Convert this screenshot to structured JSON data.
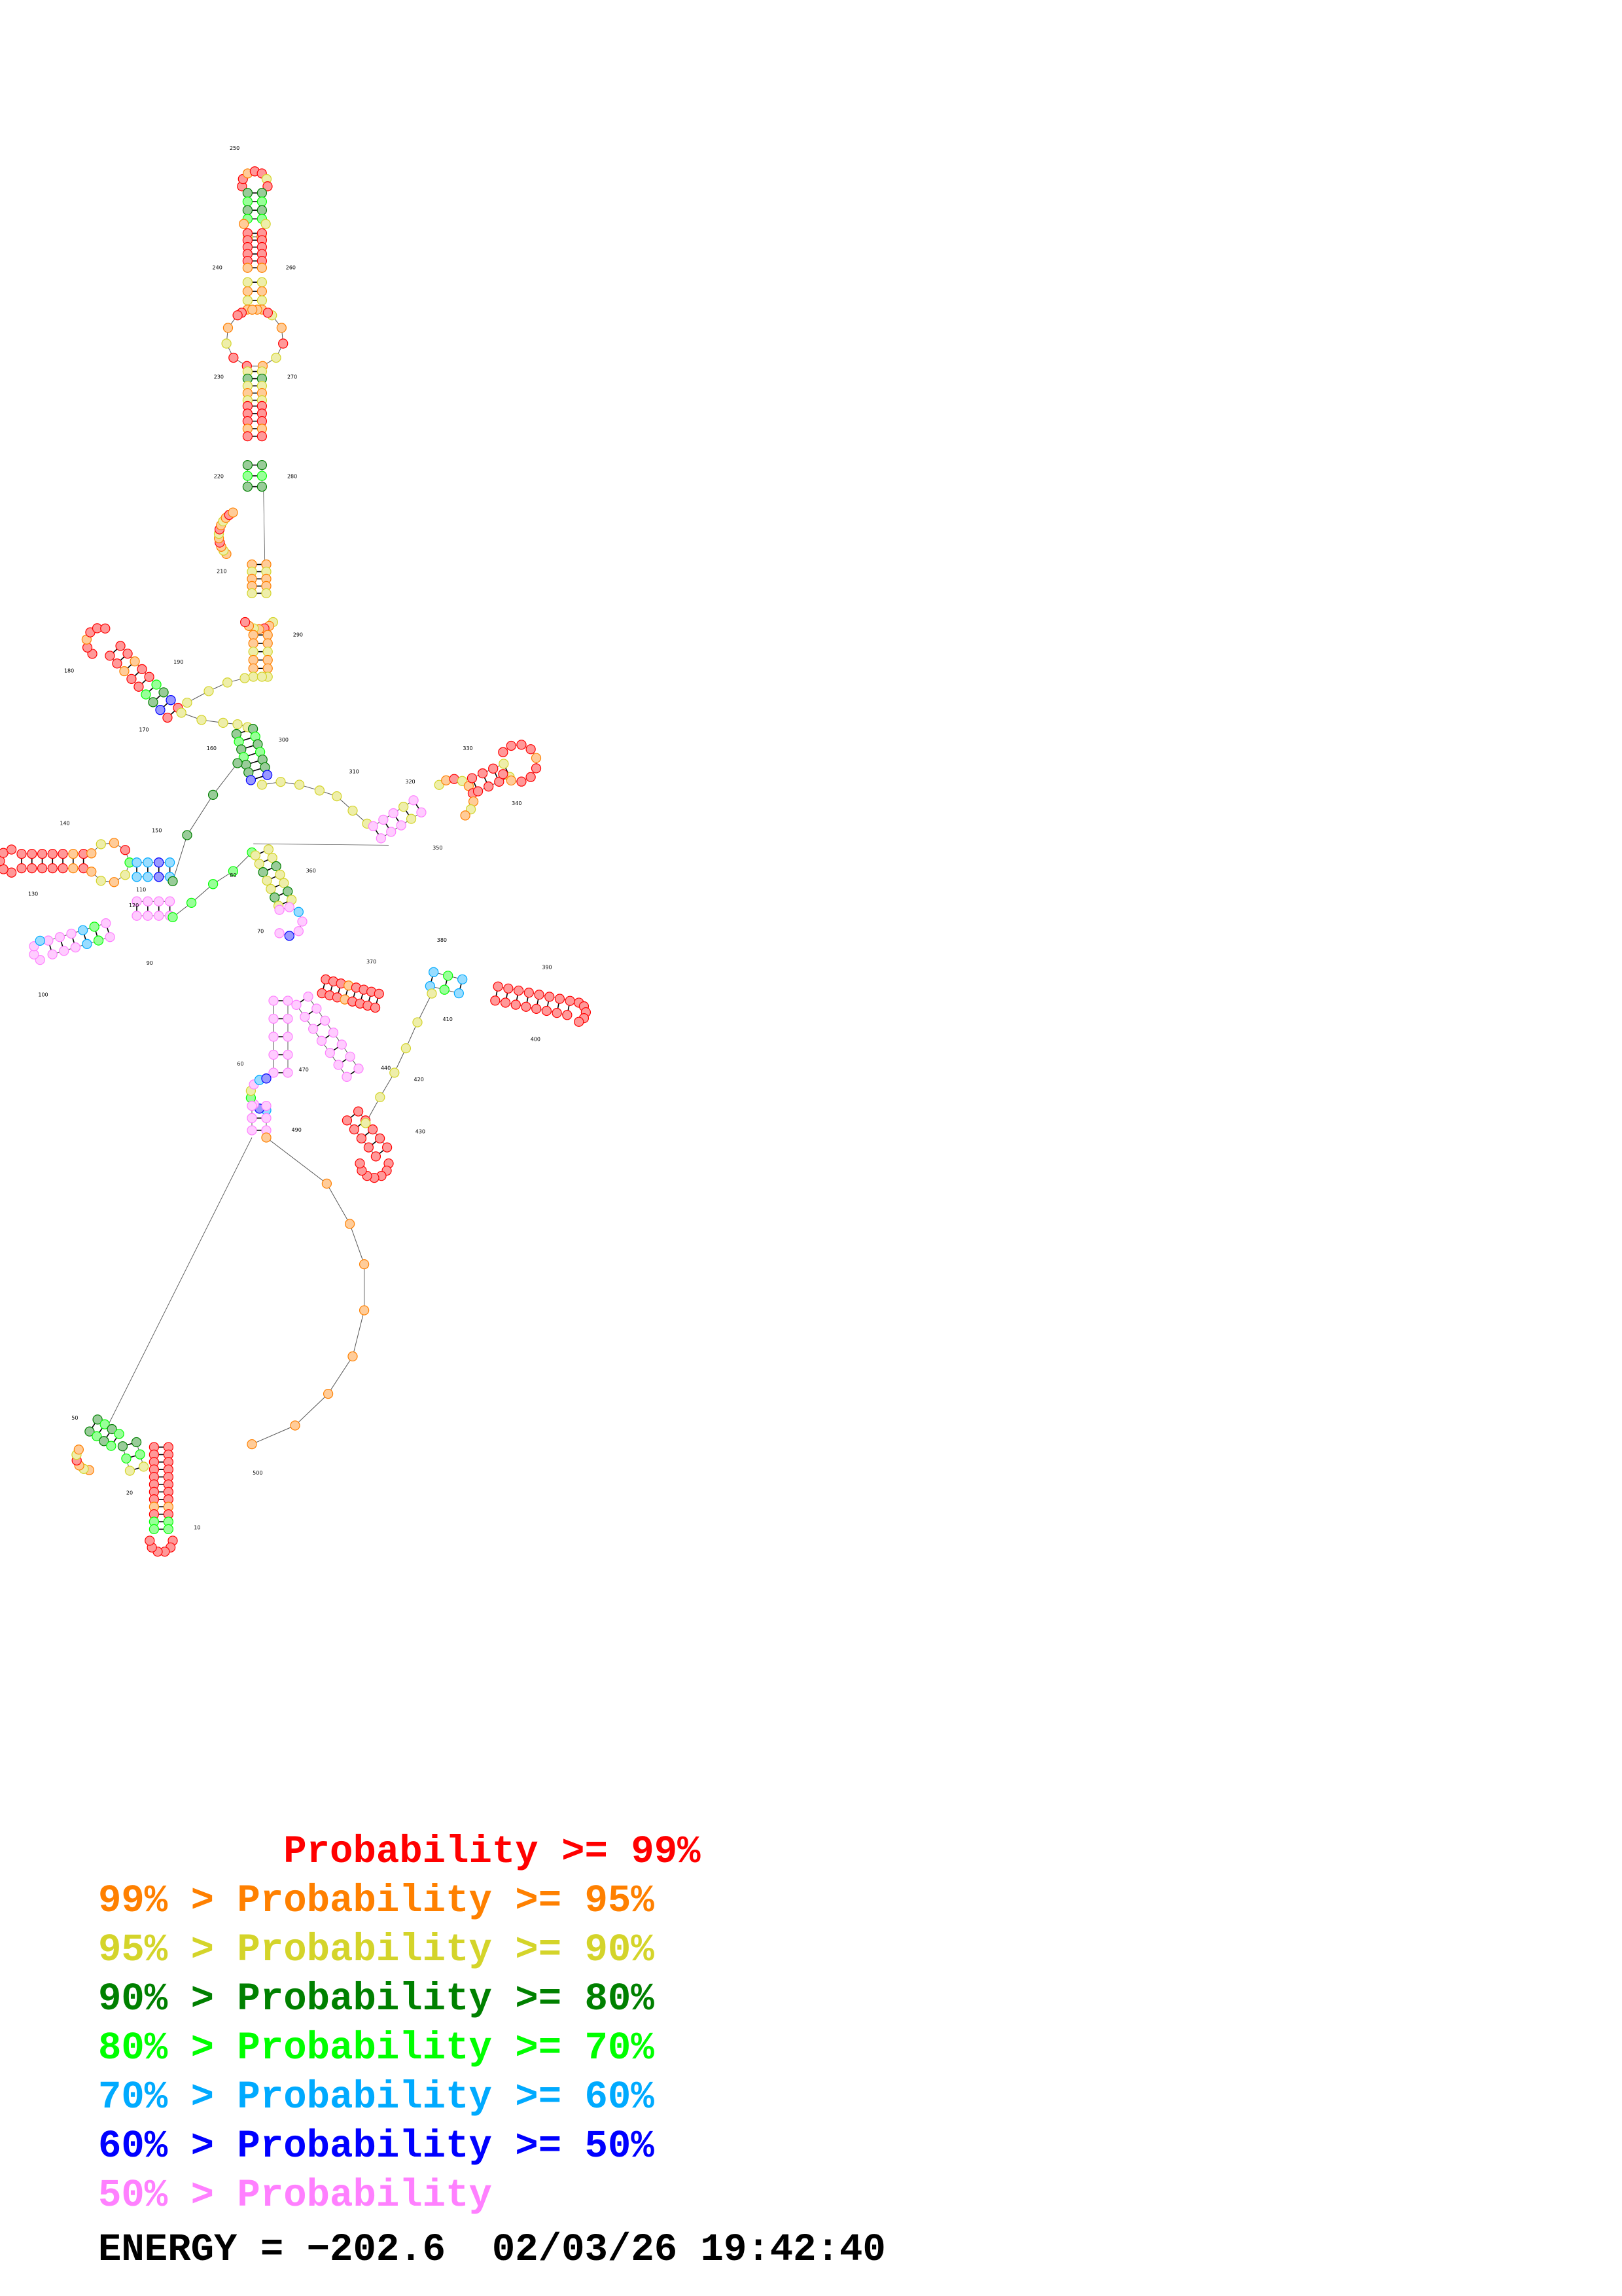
{
  "structure": {
    "energy_label": "ENERGY = ",
    "energy_value": "−202.6",
    "timestamp": "02/03/26 19:42:40",
    "residue_labels": [
      "10",
      "20",
      "50",
      "60",
      "70",
      "80",
      "90",
      "100",
      "110",
      "120",
      "130",
      "140",
      "150",
      "160",
      "170",
      "180",
      "190",
      "210",
      "220",
      "230",
      "240",
      "250",
      "260",
      "270",
      "280",
      "290",
      "300",
      "310",
      "320",
      "330",
      "340",
      "350",
      "360",
      "370",
      "380",
      "390",
      "400",
      "410",
      "420",
      "430",
      "440",
      "470",
      "490",
      "500"
    ]
  },
  "legend": [
    {
      "text": "        Probability >= 99%",
      "color": "#ff0000"
    },
    {
      "text": "99% > Probability >= 95%",
      "color": "#ff8000"
    },
    {
      "text": "95% > Probability >= 90%",
      "color": "#d4d42a"
    },
    {
      "text": "90% > Probability >= 80%",
      "color": "#008000"
    },
    {
      "text": "80% > Probability >= 70%",
      "color": "#00ff00"
    },
    {
      "text": "70% > Probability >= 60%",
      "color": "#00aaff"
    },
    {
      "text": "60% > Probability >= 50%",
      "color": "#0000ff"
    },
    {
      "text": "50% > Probability",
      "color": "#ff80ff"
    }
  ],
  "colors": {
    "p99": "#ff0000",
    "p95": "#ff8000",
    "p90": "#d4d42a",
    "p80": "#008000",
    "p70": "#00ff00",
    "p60": "#00aaff",
    "p50": "#0000ff",
    "plow": "#ff80ff",
    "backbone": "#555555"
  }
}
